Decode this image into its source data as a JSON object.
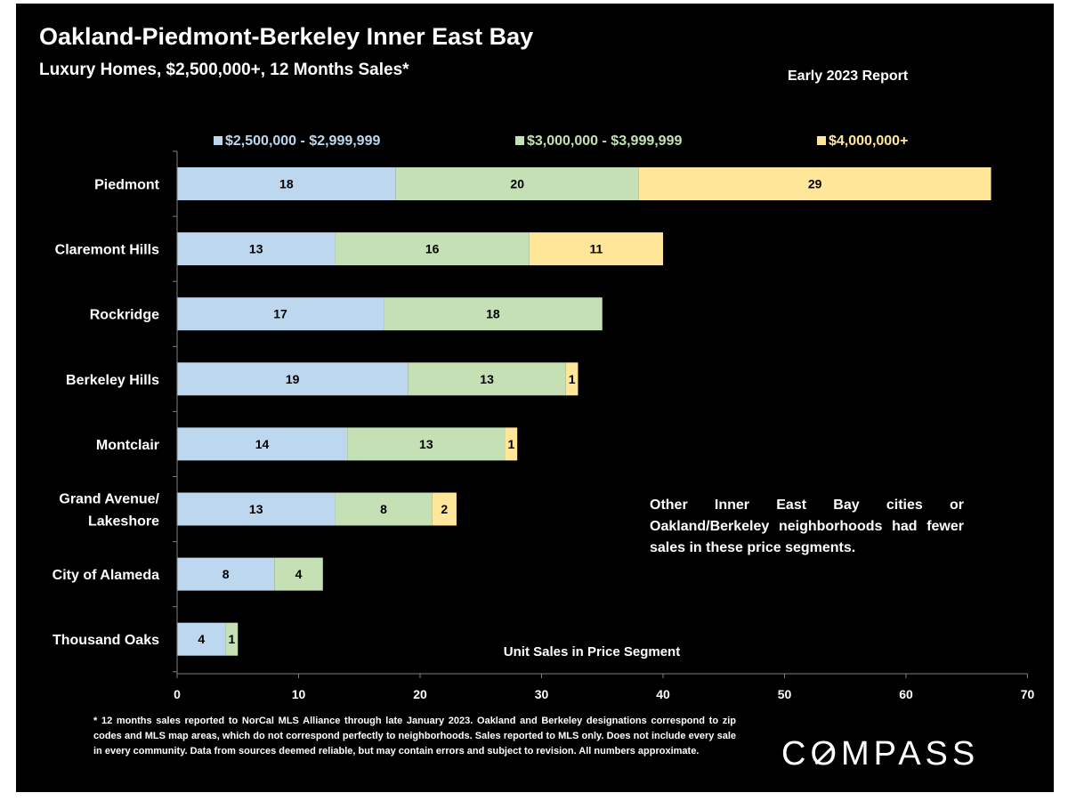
{
  "header": {
    "title": "Oakland-Piedmont-Berkeley Inner East Bay",
    "subtitle": "Luxury Homes, $2,500,000+, 12 Months Sales*",
    "report_label": "Early 2023 Report"
  },
  "chart_data": {
    "type": "bar",
    "orientation": "horizontal",
    "stacked": true,
    "title": "",
    "xlabel": "Unit Sales in Price Segment",
    "ylabel": "",
    "xlim": [
      0,
      70
    ],
    "xticks": [
      0,
      10,
      20,
      30,
      40,
      50,
      60,
      70
    ],
    "grid": false,
    "legend_position": "top",
    "categories": [
      "Piedmont",
      "Claremont Hills",
      "Rockridge",
      "Berkeley Hills",
      "Montclair",
      "Grand Avenue/ Lakeshore",
      "City of Alameda",
      "Thousand Oaks"
    ],
    "category_lines": [
      [
        "Piedmont"
      ],
      [
        "Claremont Hills"
      ],
      [
        "Rockridge"
      ],
      [
        "Berkeley Hills"
      ],
      [
        "Montclair"
      ],
      [
        "Grand Avenue/",
        "Lakeshore"
      ],
      [
        "City of Alameda"
      ],
      [
        "Thousand Oaks"
      ]
    ],
    "series": [
      {
        "name": "$2,500,000 - $2,999,999",
        "color": "#bdd7ee",
        "label_color": "#ffffff",
        "values": [
          18,
          13,
          17,
          19,
          14,
          13,
          8,
          4
        ]
      },
      {
        "name": "$3,000,000 - $3,999,999",
        "color": "#c5e0b4",
        "label_color": "#ffffff",
        "values": [
          20,
          16,
          18,
          13,
          13,
          8,
          4,
          1
        ]
      },
      {
        "name": "$4,000,000+",
        "color": "#ffe699",
        "label_color": "#ffffff",
        "values": [
          29,
          11,
          0,
          1,
          1,
          2,
          0,
          0
        ]
      }
    ]
  },
  "note": "Other Inner East Bay cities or Oakland/Berkeley neighborhoods had fewer sales in these price segments.",
  "footnote": "* 12 months sales reported to NorCal MLS Alliance through late January 2023. Oakland and Berkeley designations correspond to zip codes and MLS map areas, which do not correspond perfectly to neighborhoods. Sales reported to MLS only. Does not include every sale in every community. Data from sources deemed reliable, but may contain errors and subject to revision. All numbers approximate.",
  "logo": "COMPASS",
  "colors": {
    "background": "#000000",
    "text": "#ffffff",
    "axis": "#7f7f7f"
  }
}
